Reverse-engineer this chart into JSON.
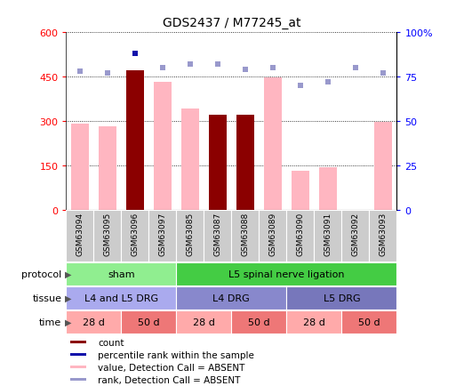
{
  "title": "GDS2437 / M77245_at",
  "samples": [
    "GSM63094",
    "GSM63095",
    "GSM63096",
    "GSM63097",
    "GSM63085",
    "GSM63087",
    "GSM63088",
    "GSM63089",
    "GSM63090",
    "GSM63091",
    "GSM63092",
    "GSM63093"
  ],
  "count_values": [
    null,
    null,
    470,
    null,
    null,
    320,
    320,
    null,
    null,
    null,
    null,
    null
  ],
  "value_absent": [
    290,
    280,
    null,
    430,
    340,
    null,
    null,
    445,
    130,
    143,
    null,
    295
  ],
  "rank_absent_pct": [
    78,
    77,
    null,
    80,
    82,
    82,
    79,
    80,
    70,
    72,
    80,
    77
  ],
  "rank_present_pct": [
    null,
    null,
    88,
    null,
    null,
    null,
    null,
    null,
    null,
    null,
    null,
    null
  ],
  "ylim_left": [
    0,
    600
  ],
  "ylim_right": [
    0,
    100
  ],
  "yticks_left": [
    0,
    150,
    300,
    450,
    600
  ],
  "yticks_right": [
    0,
    25,
    50,
    75,
    100
  ],
  "bar_dark_color": "#8B0000",
  "bar_light_color": "#FFB6C1",
  "dot_dark_color": "#1111AA",
  "dot_light_color": "#9999CC",
  "protocol_sham_color": "#90EE90",
  "protocol_ligation_color": "#44CC44",
  "tissue_shades": [
    "#AAAAEE",
    "#8888CC",
    "#7777BB"
  ],
  "time_28_color": "#FFAAAA",
  "time_50_color": "#EE7777",
  "protocol": [
    {
      "label": "sham",
      "start": 0,
      "end": 4
    },
    {
      "label": "L5 spinal nerve ligation",
      "start": 4,
      "end": 12
    }
  ],
  "tissue": [
    {
      "label": "L4 and L5 DRG",
      "start": 0,
      "end": 4
    },
    {
      "label": "L4 DRG",
      "start": 4,
      "end": 8
    },
    {
      "label": "L5 DRG",
      "start": 8,
      "end": 12
    }
  ],
  "time": [
    {
      "label": "28 d",
      "start": 0,
      "end": 2,
      "color": "#FFAAAA"
    },
    {
      "label": "50 d",
      "start": 2,
      "end": 4,
      "color": "#EE7777"
    },
    {
      "label": "28 d",
      "start": 4,
      "end": 6,
      "color": "#FFAAAA"
    },
    {
      "label": "50 d",
      "start": 6,
      "end": 8,
      "color": "#EE7777"
    },
    {
      "label": "28 d",
      "start": 8,
      "end": 10,
      "color": "#FFAAAA"
    },
    {
      "label": "50 d",
      "start": 10,
      "end": 12,
      "color": "#EE7777"
    }
  ],
  "legend_items": [
    {
      "color": "#8B0000",
      "label": "count"
    },
    {
      "color": "#1111AA",
      "label": "percentile rank within the sample"
    },
    {
      "color": "#FFB6C1",
      "label": "value, Detection Call = ABSENT"
    },
    {
      "color": "#9999CC",
      "label": "rank, Detection Call = ABSENT"
    }
  ]
}
